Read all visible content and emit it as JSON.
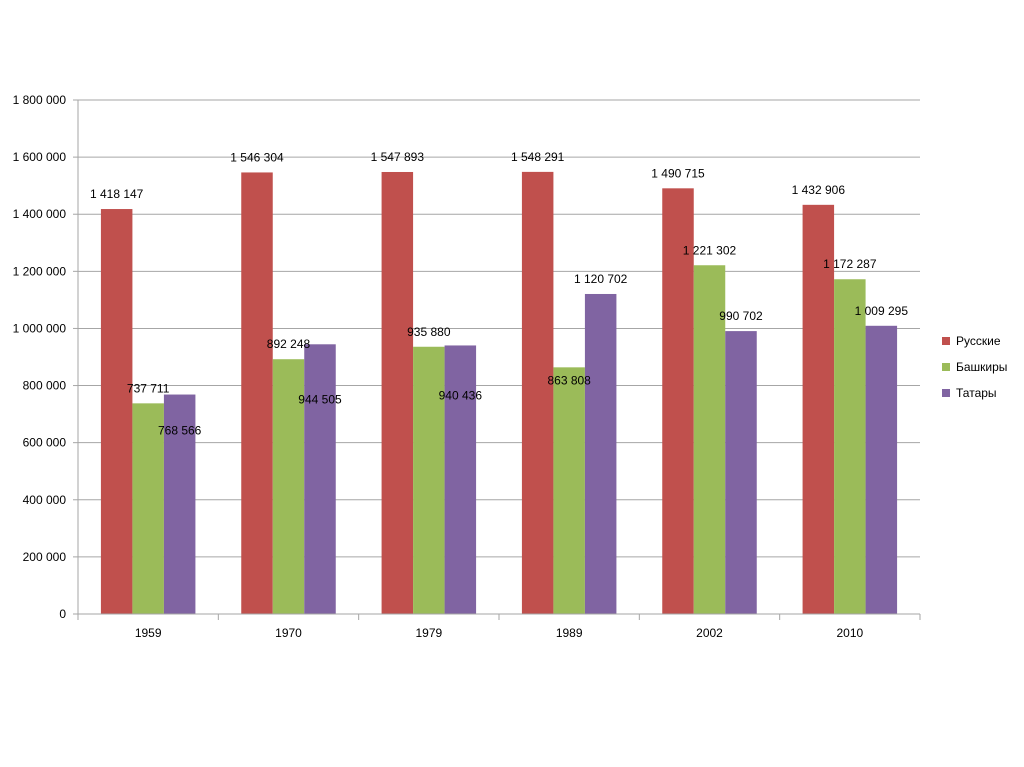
{
  "chart_data": {
    "type": "bar",
    "title": "",
    "xlabel": "",
    "ylabel": "",
    "categories": [
      "1959",
      "1970",
      "1979",
      "1989",
      "2002",
      "2010"
    ],
    "series": [
      {
        "name": "Русские",
        "color": "#C0504D",
        "values": [
          1418147,
          1546304,
          1547893,
          1548291,
          1490715,
          1432906
        ]
      },
      {
        "name": "Башкиры",
        "color": "#9BBB59",
        "values": [
          737711,
          892248,
          935880,
          863808,
          1221302,
          1172287
        ]
      },
      {
        "name": "Татары",
        "color": "#8064A2",
        "values": [
          768566,
          944505,
          940436,
          1120702,
          990702,
          1009295
        ]
      }
    ],
    "data_labels": [
      [
        "1 418 147",
        "1 546 304",
        "1 547 893",
        "1 548 291",
        "1 490 715",
        "1 432 906"
      ],
      [
        "737 711",
        "892 248",
        "935 880",
        "863 808",
        "1 221 302",
        "1 172 287"
      ],
      [
        "768 566",
        "944 505",
        "940 436",
        "1 120 702",
        "990 702",
        "1 009 295"
      ]
    ],
    "ylim": [
      0,
      1800000
    ],
    "yticks": [
      0,
      200000,
      400000,
      600000,
      800000,
      1000000,
      1200000,
      1400000,
      1600000,
      1800000
    ],
    "ytick_labels": [
      "0",
      "200 000",
      "400 000",
      "600 000",
      "800 000",
      "1 000 000",
      "1 200 000",
      "1 400 000",
      "1 600 000",
      "1 800 000"
    ],
    "grid": true,
    "legend_position": "right"
  }
}
